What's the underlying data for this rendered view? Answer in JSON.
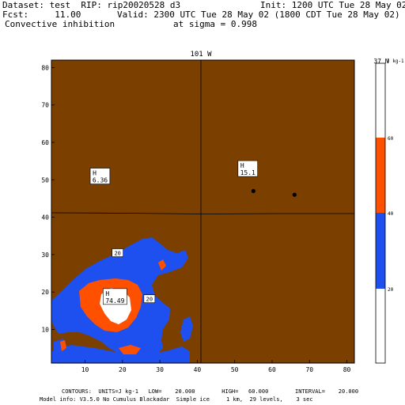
{
  "header": {
    "line1_left": "Dataset: test  RIP: rip20020528 d3",
    "line1_right": "Init: 1200 UTC Tue 28 May 02",
    "line2_left": "Fcst:     11.00",
    "line2_right": "Valid: 2300 UTC Tue 28 May 02 (1800 CDT Tue 28 May 02)",
    "line3_left": "Convective inhibition",
    "line3_right": "at sigma = 0.998"
  },
  "footer": {
    "line1": "CONTOURS:  UNITS=J kg-1   LOW=    20.000        HIGH=   60.000        INTERVAL=    20.000",
    "line2": "Model info: V3.5.0 No Cumulus Blackadar  Simple ice     1 km,  29 levels,    3 sec"
  },
  "chart_data": {
    "type": "filled-contour",
    "title": "Convective inhibition",
    "units": "J kg-1",
    "top_label": "101 W",
    "right_label": "37 N",
    "x_ticks": [
      10,
      20,
      30,
      40,
      50,
      60,
      70,
      80
    ],
    "y_ticks": [
      10,
      20,
      30,
      40,
      50,
      60,
      70,
      80
    ],
    "xlim": [
      1,
      82
    ],
    "ylim": [
      1,
      82
    ],
    "meridian_x": 40,
    "parallel_y": 41,
    "contour_levels": [
      20,
      40,
      60
    ],
    "colors": {
      "below_20": "#ffffff",
      "20_40": "#1e50f0",
      "40_60": "#ff5000",
      "above_60": "#ffffff",
      "background": "#7b3f00"
    },
    "colorbar": {
      "unit_label": "J kg-1",
      "labels": [
        "60",
        "40",
        "20"
      ]
    },
    "contour_labels": [
      "20",
      "20"
    ],
    "maxima": [
      {
        "tag": "H",
        "value": "6.36",
        "x": 14,
        "y": 51
      },
      {
        "tag": "H",
        "value": "15.1",
        "x": 53.5,
        "y": 53
      },
      {
        "tag": "H",
        "value": "74.49",
        "x": 18,
        "y": 18.8
      }
    ],
    "dots": [
      {
        "x": 55,
        "y": 47
      },
      {
        "x": 66,
        "y": 46
      }
    ]
  }
}
